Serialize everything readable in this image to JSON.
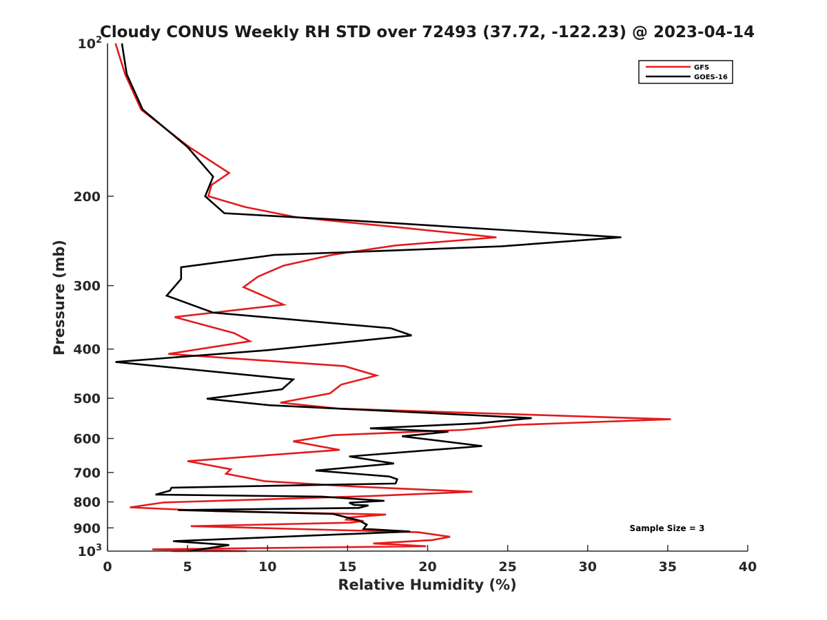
{
  "chart_data": {
    "type": "line",
    "title": "Cloudy CONUS Weekly RH STD over 72493 (37.72, -122.23) @ 2023-04-14",
    "xlabel": "Relative Humidity (%)",
    "ylabel": "Pressure (mb)",
    "xlim": [
      0,
      40
    ],
    "ylim": [
      100,
      1000
    ],
    "y_scale": "log",
    "y_reversed": true,
    "x_ticks": [
      "0",
      "5",
      "10",
      "15",
      "20",
      "25",
      "30",
      "35",
      "40"
    ],
    "y_ticks": [
      {
        "value": 100,
        "base": "10",
        "exp": "2"
      },
      {
        "value": 200,
        "label": "200"
      },
      {
        "value": 300,
        "label": "300"
      },
      {
        "value": 400,
        "label": "400"
      },
      {
        "value": 500,
        "label": "500"
      },
      {
        "value": 600,
        "label": "600"
      },
      {
        "value": 700,
        "label": "700"
      },
      {
        "value": 800,
        "label": "800"
      },
      {
        "value": 900,
        "label": "900"
      },
      {
        "value": 1000,
        "base": "10",
        "exp": "3"
      }
    ],
    "grid": false,
    "legend_position": "top-right",
    "series": [
      {
        "name": "GFS",
        "color": "#e41a1c",
        "points": [
          [
            0.5,
            100
          ],
          [
            1.1,
            115
          ],
          [
            2.1,
            135
          ],
          [
            5.1,
            160
          ],
          [
            7.6,
            180
          ],
          [
            6.5,
            190
          ],
          [
            6.3,
            200
          ],
          [
            8.6,
            210
          ],
          [
            11.8,
            220
          ],
          [
            18.0,
            230
          ],
          [
            24.3,
            241
          ],
          [
            18.0,
            250
          ],
          [
            14.0,
            261
          ],
          [
            11.0,
            274
          ],
          [
            9.4,
            288
          ],
          [
            8.5,
            302
          ],
          [
            11.0,
            327
          ],
          [
            4.2,
            346
          ],
          [
            7.9,
            372
          ],
          [
            8.9,
            386
          ],
          [
            3.8,
            409
          ],
          [
            14.8,
            432
          ],
          [
            16.8,
            451
          ],
          [
            14.6,
            470
          ],
          [
            13.9,
            489
          ],
          [
            10.8,
            510
          ],
          [
            14.4,
            524
          ],
          [
            35.2,
            550
          ],
          [
            25.6,
            564
          ],
          [
            22.2,
            577
          ],
          [
            14.1,
            591
          ],
          [
            11.6,
            608
          ],
          [
            14.5,
            632
          ],
          [
            5.0,
            665
          ],
          [
            7.7,
            690
          ],
          [
            7.4,
            704
          ],
          [
            9.8,
            728
          ],
          [
            15.7,
            747
          ],
          [
            22.8,
            764
          ],
          [
            16.4,
            779
          ],
          [
            3.5,
            802
          ],
          [
            1.4,
            820
          ],
          [
            6.7,
            834
          ],
          [
            17.4,
            847
          ],
          [
            15.0,
            859
          ],
          [
            14.9,
            867
          ],
          [
            16.0,
            872
          ],
          [
            15.2,
            879
          ],
          [
            5.2,
            893
          ],
          [
            19.4,
            918
          ],
          [
            21.4,
            937
          ],
          [
            20.3,
            951
          ],
          [
            16.6,
            966
          ],
          [
            18.6,
            973
          ],
          [
            19.9,
            978
          ],
          [
            2.8,
            992
          ],
          [
            8.7,
            1006
          ],
          [
            4.0,
            1020
          ]
        ]
      },
      {
        "name": "GOES-16",
        "color": "#000000",
        "points": [
          [
            0.9,
            100
          ],
          [
            1.2,
            115
          ],
          [
            2.2,
            135
          ],
          [
            5.0,
            160
          ],
          [
            6.6,
            183
          ],
          [
            6.1,
            200
          ],
          [
            7.3,
            216
          ],
          [
            14.0,
            222
          ],
          [
            32.1,
            241
          ],
          [
            24.6,
            251
          ],
          [
            10.4,
            261
          ],
          [
            4.6,
            276
          ],
          [
            4.6,
            291
          ],
          [
            3.7,
            314
          ],
          [
            6.6,
            339
          ],
          [
            17.7,
            364
          ],
          [
            19.0,
            376
          ],
          [
            10.0,
            402
          ],
          [
            0.5,
            424
          ],
          [
            11.6,
            459
          ],
          [
            10.9,
            480
          ],
          [
            6.2,
            501
          ],
          [
            10.1,
            516
          ],
          [
            26.5,
            547
          ],
          [
            23.2,
            560
          ],
          [
            16.4,
            573
          ],
          [
            21.3,
            582
          ],
          [
            18.4,
            594
          ],
          [
            23.4,
            621
          ],
          [
            15.1,
            651
          ],
          [
            17.9,
            672
          ],
          [
            13.0,
            694
          ],
          [
            17.6,
            713
          ],
          [
            18.1,
            722
          ],
          [
            18.0,
            736
          ],
          [
            4.0,
            750
          ],
          [
            3.9,
            760
          ],
          [
            3.0,
            774
          ],
          [
            13.4,
            781
          ],
          [
            17.3,
            796
          ],
          [
            15.1,
            803
          ],
          [
            15.4,
            811
          ],
          [
            16.3,
            813
          ],
          [
            15.7,
            822
          ],
          [
            4.4,
            830
          ],
          [
            14.1,
            845
          ],
          [
            15.7,
            870
          ],
          [
            16.2,
            887
          ],
          [
            16.0,
            904
          ],
          [
            18.9,
            915
          ],
          [
            4.1,
            956
          ],
          [
            7.6,
            973
          ],
          [
            5.1,
            1010
          ]
        ]
      }
    ],
    "annotations": [
      "Sample Size = 3"
    ]
  }
}
